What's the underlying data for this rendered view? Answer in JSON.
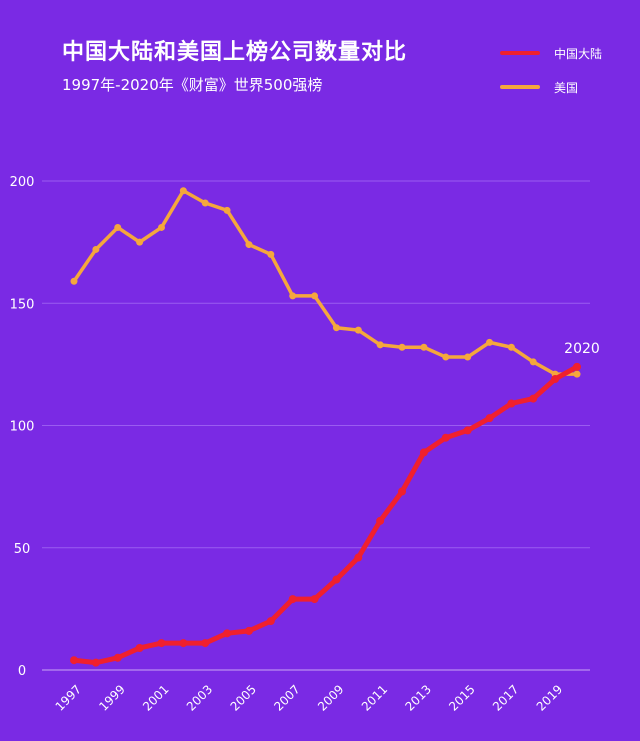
{
  "chart_data": {
    "type": "line",
    "title": "中国大陆和美国上榜公司数量对比",
    "subtitle": "1997年-2020年《财富》世界500强榜",
    "x": [
      1997,
      1998,
      1999,
      2000,
      2001,
      2002,
      2003,
      2004,
      2005,
      2006,
      2007,
      2008,
      2009,
      2010,
      2011,
      2012,
      2013,
      2014,
      2015,
      2016,
      2017,
      2018,
      2019,
      2020
    ],
    "x_tick_labels": [
      "1997",
      "1999",
      "2001",
      "2003",
      "2005",
      "2007",
      "2009",
      "2011",
      "2013",
      "2015",
      "2017",
      "2019"
    ],
    "y_tick_labels": [
      "0",
      "50",
      "100",
      "150",
      "200"
    ],
    "ylim": [
      0,
      200
    ],
    "grid": true,
    "legend_placement": "top-right",
    "annotation": "2020",
    "series": [
      {
        "name": "中国大陆",
        "color": "#f0202e",
        "values": [
          4,
          3,
          5,
          9,
          11,
          11,
          11,
          15,
          16,
          20,
          29,
          29,
          37,
          46,
          61,
          73,
          89,
          95,
          98,
          103,
          109,
          111,
          119,
          124
        ]
      },
      {
        "name": "美国",
        "color": "#f5a73c",
        "values": [
          159,
          172,
          181,
          175,
          181,
          196,
          191,
          188,
          174,
          170,
          153,
          153,
          140,
          139,
          133,
          132,
          132,
          128,
          128,
          134,
          132,
          126,
          121,
          121
        ]
      }
    ]
  }
}
